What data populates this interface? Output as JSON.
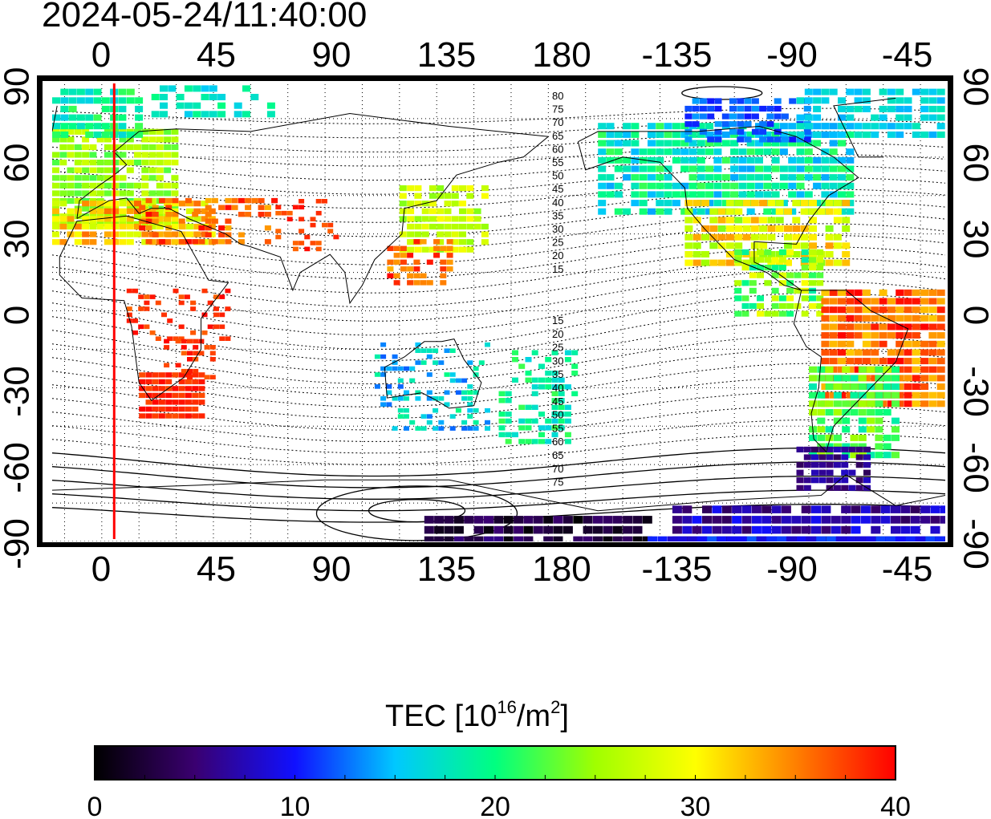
{
  "title": "2024-05-24/11:40:00",
  "map": {
    "top_ticks": [
      "0",
      "45",
      "90",
      "135",
      "180",
      "-135",
      "-90",
      "-45"
    ],
    "bottom_ticks": [
      "0",
      "45",
      "90",
      "135",
      "180",
      "-135",
      "-90",
      "-45"
    ],
    "left_ticks": [
      "90",
      "60",
      "30",
      "0",
      "-30",
      "-60",
      "-90"
    ],
    "right_ticks": [
      "90",
      "60",
      "30",
      "0",
      "-30",
      "-60",
      "-90"
    ],
    "contour_labels_north": [
      "80",
      "75",
      "70",
      "65",
      "60",
      "55",
      "50",
      "45",
      "40",
      "35",
      "30",
      "25",
      "20",
      "15"
    ],
    "contour_labels_south": [
      "15",
      "20",
      "25",
      "30",
      "35",
      "40",
      "45",
      "50",
      "55",
      "60",
      "65",
      "70",
      "75"
    ],
    "marker_longitude": 5,
    "marker_color": "#ff0000"
  },
  "colorbar": {
    "label": "TEC  [10",
    "label_sup": "16",
    "label_mid": "/m",
    "label_sup2": "2",
    "label_end": "]",
    "ticks": [
      "0",
      "10",
      "20",
      "30",
      "40"
    ],
    "min": 0,
    "max": 40,
    "colors": [
      "#000000",
      "#3a0070",
      "#1010ff",
      "#00c8ff",
      "#00ff80",
      "#a0ff00",
      "#ffff00",
      "#ff8000",
      "#ff0000"
    ]
  }
}
